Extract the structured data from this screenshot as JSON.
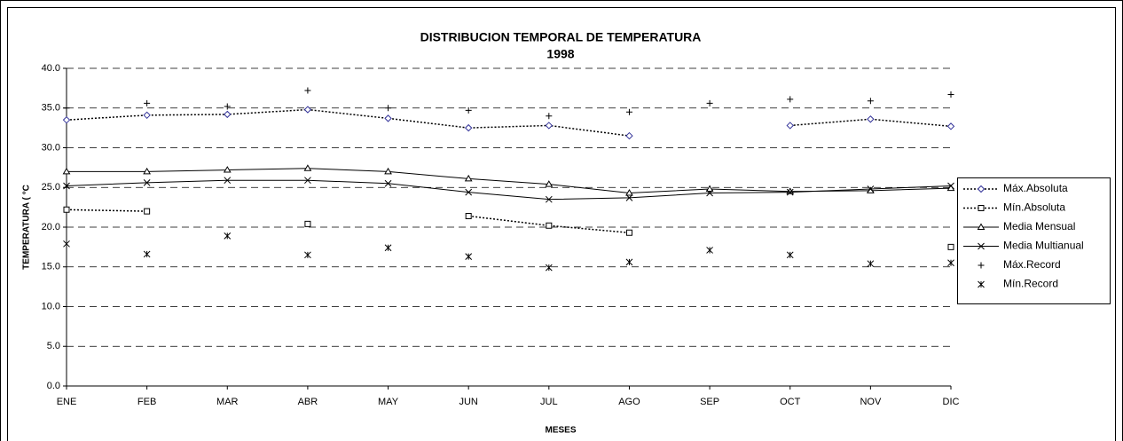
{
  "chart_data": {
    "type": "line",
    "title": "DISTRIBUCION TEMPORAL DE TEMPERATURA",
    "subtitle": "1998",
    "x_label": "MESES",
    "y_label": "TEMPERATURA ( °C",
    "categories": [
      "ENE",
      "FEB",
      "MAR",
      "ABR",
      "MAY",
      "JUN",
      "JUL",
      "AGO",
      "SEP",
      "OCT",
      "NOV",
      "DIC"
    ],
    "ylim": [
      0,
      40
    ],
    "yticks": [
      {
        "value": 0,
        "label": "0.0"
      },
      {
        "value": 5,
        "label": "5.0"
      },
      {
        "value": 10,
        "label": "10.0"
      },
      {
        "value": 15,
        "label": "15.0"
      },
      {
        "value": 20,
        "label": "20.0"
      },
      {
        "value": 25,
        "label": "25.0"
      },
      {
        "value": 30,
        "label": "30.0"
      },
      {
        "value": 35,
        "label": "35.0"
      },
      {
        "value": 40,
        "label": "40.0"
      }
    ],
    "grid": true,
    "legend": "right",
    "series": [
      {
        "name": "Máx.Absoluta",
        "color": "#333399",
        "marker": "diamond",
        "line_style": "dotted",
        "values": [
          33.5,
          34.1,
          34.2,
          34.8,
          33.7,
          32.5,
          32.8,
          31.5,
          null,
          32.8,
          33.6,
          32.7
        ]
      },
      {
        "name": "Mín.Absoluta",
        "color": "#000000",
        "marker": "square",
        "line_style": "dotted",
        "values": [
          22.2,
          22.0,
          null,
          20.4,
          null,
          21.4,
          20.2,
          19.3,
          null,
          null,
          null,
          17.5
        ]
      },
      {
        "name": "Media Mensual",
        "color": "#000000",
        "marker": "triangle",
        "line_style": "solid",
        "values": [
          27.0,
          27.0,
          27.2,
          27.4,
          27.0,
          26.1,
          25.4,
          24.3,
          24.8,
          24.5,
          24.6,
          24.9
        ]
      },
      {
        "name": "Media Multianual",
        "color": "#000000",
        "marker": "x",
        "line_style": "solid",
        "values": [
          25.2,
          25.6,
          25.9,
          25.9,
          25.5,
          24.4,
          23.5,
          23.7,
          24.3,
          24.4,
          24.8,
          25.2
        ]
      },
      {
        "name": "Máx.Record",
        "color": "#000000",
        "marker": "plus",
        "line_style": "none",
        "values": [
          35.0,
          35.6,
          35.2,
          37.2,
          35.0,
          34.7,
          34.0,
          34.5,
          35.6,
          36.1,
          35.9,
          36.7
        ]
      },
      {
        "name": "Mín.Record",
        "color": "#000000",
        "marker": "star",
        "line_style": "none",
        "values": [
          17.9,
          16.6,
          18.9,
          16.5,
          17.4,
          16.3,
          14.9,
          15.6,
          17.1,
          16.5,
          15.4,
          15.5
        ]
      }
    ]
  }
}
